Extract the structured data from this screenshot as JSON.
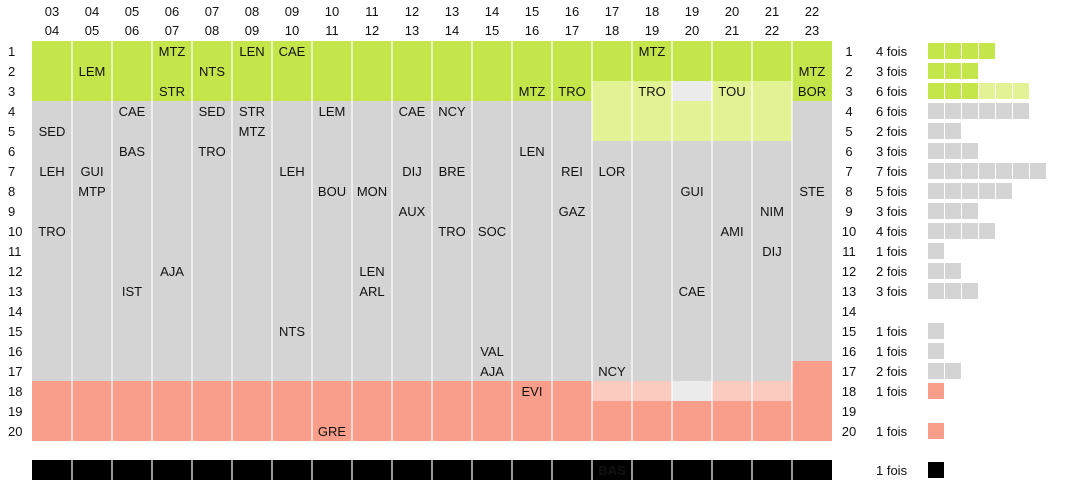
{
  "chart_data": {
    "type": "table",
    "seasons": [
      [
        "03",
        "04"
      ],
      [
        "04",
        "05"
      ],
      [
        "05",
        "06"
      ],
      [
        "06",
        "07"
      ],
      [
        "07",
        "08"
      ],
      [
        "08",
        "09"
      ],
      [
        "09",
        "10"
      ],
      [
        "10",
        "11"
      ],
      [
        "11",
        "12"
      ],
      [
        "12",
        "13"
      ],
      [
        "13",
        "14"
      ],
      [
        "14",
        "15"
      ],
      [
        "15",
        "16"
      ],
      [
        "16",
        "17"
      ],
      [
        "17",
        "18"
      ],
      [
        "18",
        "19"
      ],
      [
        "19",
        "20"
      ],
      [
        "20",
        "21"
      ],
      [
        "21",
        "22"
      ],
      [
        "22",
        "23"
      ]
    ],
    "ranks": [
      1,
      2,
      3,
      4,
      5,
      6,
      7,
      8,
      9,
      10,
      11,
      12,
      13,
      14,
      15,
      16,
      17,
      18,
      19,
      20
    ],
    "team_labels": [
      {
        "season": 0,
        "rank": 5,
        "text": "SED"
      },
      {
        "season": 0,
        "rank": 7,
        "text": "LEH"
      },
      {
        "season": 0,
        "rank": 10,
        "text": "TRO"
      },
      {
        "season": 1,
        "rank": 2,
        "text": "LEM"
      },
      {
        "season": 1,
        "rank": 7,
        "text": "GUI"
      },
      {
        "season": 1,
        "rank": 8,
        "text": "MTP"
      },
      {
        "season": 2,
        "rank": 4,
        "text": "CAE"
      },
      {
        "season": 2,
        "rank": 6,
        "text": "BAS"
      },
      {
        "season": 2,
        "rank": 13,
        "text": "IST"
      },
      {
        "season": 3,
        "rank": 1,
        "text": "MTZ"
      },
      {
        "season": 3,
        "rank": 3,
        "text": "STR"
      },
      {
        "season": 3,
        "rank": 12,
        "text": "AJA"
      },
      {
        "season": 4,
        "rank": 2,
        "text": "NTS"
      },
      {
        "season": 4,
        "rank": 4,
        "text": "SED"
      },
      {
        "season": 4,
        "rank": 6,
        "text": "TRO"
      },
      {
        "season": 5,
        "rank": 1,
        "text": "LEN"
      },
      {
        "season": 5,
        "rank": 4,
        "text": "STR"
      },
      {
        "season": 5,
        "rank": 5,
        "text": "MTZ"
      },
      {
        "season": 6,
        "rank": 1,
        "text": "CAE"
      },
      {
        "season": 6,
        "rank": 7,
        "text": "LEH"
      },
      {
        "season": 6,
        "rank": 15,
        "text": "NTS"
      },
      {
        "season": 7,
        "rank": 4,
        "text": "LEM"
      },
      {
        "season": 7,
        "rank": 8,
        "text": "BOU"
      },
      {
        "season": 7,
        "rank": 20,
        "text": "GRE"
      },
      {
        "season": 8,
        "rank": 8,
        "text": "MON"
      },
      {
        "season": 8,
        "rank": 12,
        "text": "LEN"
      },
      {
        "season": 8,
        "rank": 13,
        "text": "ARL"
      },
      {
        "season": 9,
        "rank": 4,
        "text": "CAE"
      },
      {
        "season": 9,
        "rank": 7,
        "text": "DIJ"
      },
      {
        "season": 9,
        "rank": 9,
        "text": "AUX"
      },
      {
        "season": 10,
        "rank": 4,
        "text": "NCY"
      },
      {
        "season": 10,
        "rank": 7,
        "text": "BRE"
      },
      {
        "season": 10,
        "rank": 10,
        "text": "TRO"
      },
      {
        "season": 11,
        "rank": 10,
        "text": "SOC"
      },
      {
        "season": 11,
        "rank": 16,
        "text": "VAL"
      },
      {
        "season": 11,
        "rank": 17,
        "text": "AJA"
      },
      {
        "season": 12,
        "rank": 3,
        "text": "MTZ"
      },
      {
        "season": 12,
        "rank": 6,
        "text": "LEN"
      },
      {
        "season": 12,
        "rank": 18,
        "text": "EVI"
      },
      {
        "season": 13,
        "rank": 3,
        "text": "TRO"
      },
      {
        "season": 13,
        "rank": 7,
        "text": "REI"
      },
      {
        "season": 13,
        "rank": 9,
        "text": "GAZ"
      },
      {
        "season": 14,
        "rank": 7,
        "text": "LOR"
      },
      {
        "season": 14,
        "rank": 17,
        "text": "NCY"
      },
      {
        "season": 15,
        "rank": 1,
        "text": "MTZ"
      },
      {
        "season": 15,
        "rank": 3,
        "text": "TRO"
      },
      {
        "season": 16,
        "rank": 8,
        "text": "GUI"
      },
      {
        "season": 16,
        "rank": 13,
        "text": "CAE"
      },
      {
        "season": 17,
        "rank": 3,
        "text": "TOU"
      },
      {
        "season": 17,
        "rank": 10,
        "text": "AMI"
      },
      {
        "season": 18,
        "rank": 9,
        "text": "NIM"
      },
      {
        "season": 18,
        "rank": 11,
        "text": "DIJ"
      },
      {
        "season": 19,
        "rank": 2,
        "text": "MTZ"
      },
      {
        "season": 19,
        "rank": 3,
        "text": "BOR"
      },
      {
        "season": 19,
        "rank": 8,
        "text": "STE"
      }
    ],
    "promotion_ranks_per_season": [
      3,
      3,
      3,
      3,
      3,
      3,
      3,
      3,
      3,
      3,
      3,
      3,
      3,
      3,
      5,
      5,
      5,
      5,
      5,
      3
    ],
    "relegation_from_rank_per_season": [
      18,
      18,
      18,
      18,
      18,
      18,
      18,
      18,
      18,
      18,
      18,
      18,
      18,
      18,
      18,
      18,
      18,
      18,
      18,
      17
    ],
    "bottom_bar": {
      "season": 14,
      "text": "BAS",
      "count_label": "1 fois"
    },
    "counts": [
      4,
      3,
      6,
      6,
      2,
      3,
      7,
      5,
      3,
      4,
      1,
      2,
      3,
      0,
      1,
      1,
      2,
      1,
      0,
      1
    ],
    "count_labels": [
      "4 fois",
      "3 fois",
      "6 fois",
      "6 fois",
      "2 fois",
      "3 fois",
      "7 fois",
      "5 fois",
      "3 fois",
      "4 fois",
      "1 fois",
      "2 fois",
      "3 fois",
      "",
      "1 fois",
      "1 fois",
      "2 fois",
      "1 fois",
      "",
      "1 fois"
    ],
    "colors": {
      "promotion": "#c4e64a",
      "promotion_light": "#e2f294",
      "middle": "#d4d4d4",
      "middle_light": "#ebebeb",
      "relegation": "#f89e8a",
      "relegation_light": "#fbcbc0",
      "bar": "#000000",
      "count_promotion": "#c4e64a",
      "count_promotion_light": "#e2f294",
      "count_middle": "#d4d4d4",
      "count_relegation": "#f89e8a"
    }
  }
}
